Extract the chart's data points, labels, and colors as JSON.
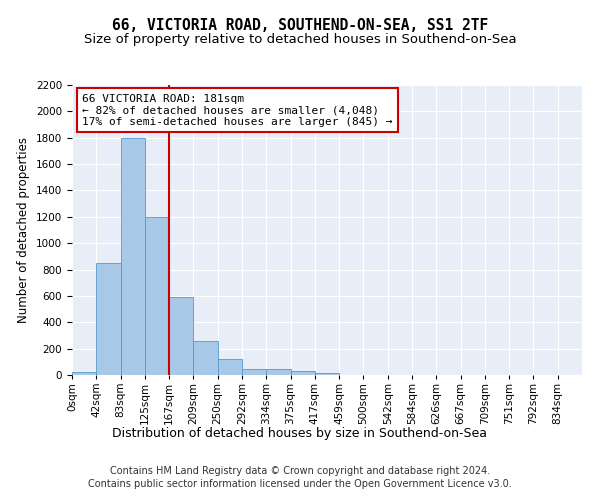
{
  "title": "66, VICTORIA ROAD, SOUTHEND-ON-SEA, SS1 2TF",
  "subtitle": "Size of property relative to detached houses in Southend-on-Sea",
  "xlabel": "Distribution of detached houses by size in Southend-on-Sea",
  "ylabel": "Number of detached properties",
  "bar_values": [
    25,
    850,
    1800,
    1200,
    590,
    260,
    125,
    48,
    45,
    32,
    18,
    0,
    0,
    0,
    0,
    0,
    0,
    0,
    0,
    0,
    0
  ],
  "bar_labels": [
    "0sqm",
    "42sqm",
    "83sqm",
    "125sqm",
    "167sqm",
    "209sqm",
    "250sqm",
    "292sqm",
    "334sqm",
    "375sqm",
    "417sqm",
    "459sqm",
    "500sqm",
    "542sqm",
    "584sqm",
    "626sqm",
    "667sqm",
    "709sqm",
    "751sqm",
    "792sqm",
    "834sqm"
  ],
  "bar_color": "#a8c8e8",
  "bar_edge_color": "#5599cc",
  "annotation_line1": "66 VICTORIA ROAD: 181sqm",
  "annotation_line2": "← 82% of detached houses are smaller (4,048)",
  "annotation_line3": "17% of semi-detached houses are larger (845) →",
  "annotation_box_color": "#ffffff",
  "annotation_box_edge_color": "#cc0000",
  "vline_x": 4.0,
  "vline_color": "#cc0000",
  "ylim": [
    0,
    2200
  ],
  "yticks": [
    0,
    200,
    400,
    600,
    800,
    1000,
    1200,
    1400,
    1600,
    1800,
    2000,
    2200
  ],
  "bg_color": "#e8eef8",
  "footer_line1": "Contains HM Land Registry data © Crown copyright and database right 2024.",
  "footer_line2": "Contains public sector information licensed under the Open Government Licence v3.0.",
  "title_fontsize": 10.5,
  "subtitle_fontsize": 9.5,
  "xlabel_fontsize": 9,
  "ylabel_fontsize": 8.5,
  "tick_fontsize": 7.5,
  "annotation_fontsize": 8,
  "footer_fontsize": 7
}
